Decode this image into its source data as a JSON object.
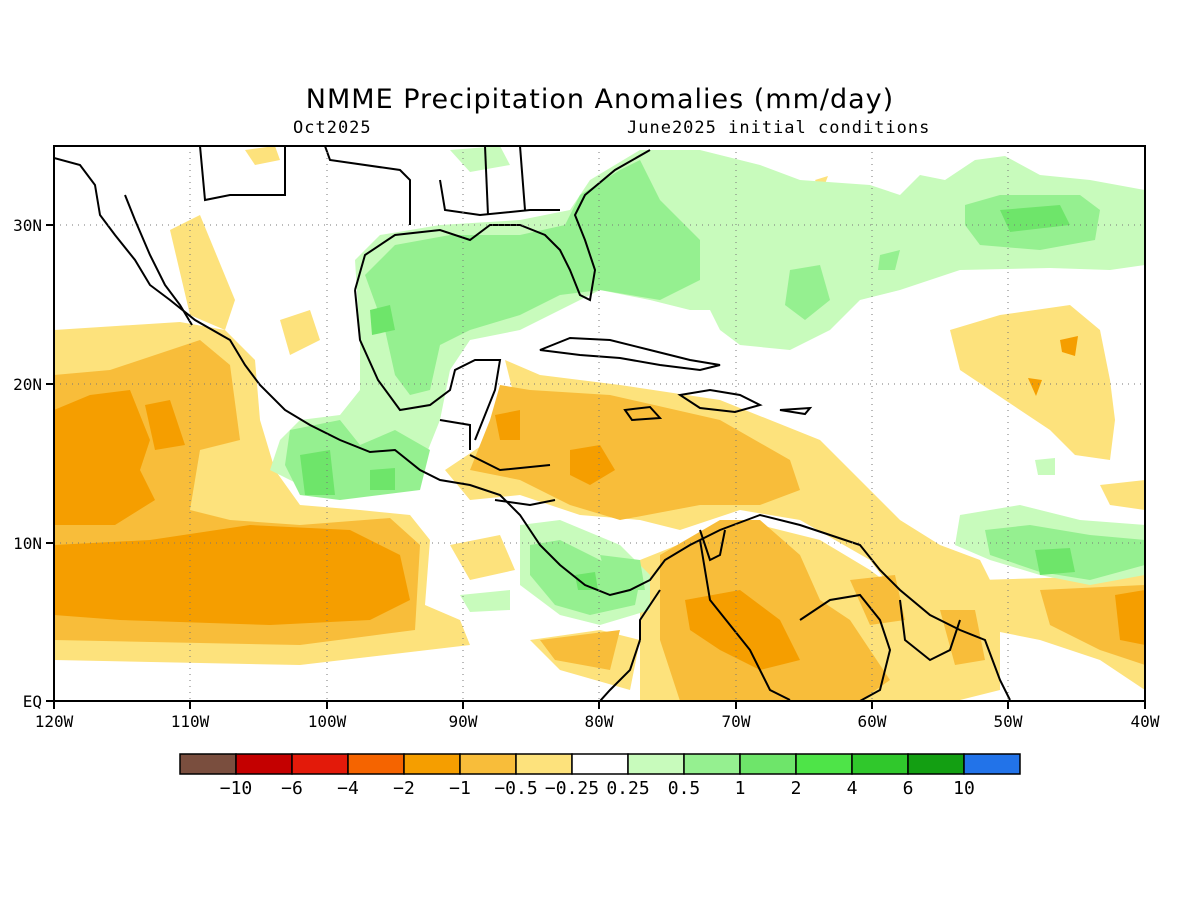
{
  "title": "NMME Precipitation Anomalies (mm/day)",
  "valid_month": "Oct2025",
  "initial_conditions": "June2025 initial conditions",
  "map": {
    "projection": "lat-lon",
    "lon_range": [
      -120,
      -40
    ],
    "lat_range": [
      0,
      35
    ],
    "grid": "dotted",
    "x_ticks": [
      "120W",
      "110W",
      "100W",
      "90W",
      "80W",
      "70W",
      "60W",
      "50W",
      "40W"
    ],
    "y_ticks": [
      "EQ",
      "10N",
      "20N",
      "30N"
    ]
  },
  "colorbar": {
    "colors": [
      "#7a4e3e",
      "#c40000",
      "#e31a0a",
      "#f56400",
      "#f59e00",
      "#f8bd3a",
      "#fde27c",
      "#ffffff",
      "#c8fbbc",
      "#95f090",
      "#6ee56a",
      "#4ee448",
      "#30c82c",
      "#139f12",
      "#2273e9"
    ],
    "labels": [
      "-10",
      "-6",
      "-4",
      "-2",
      "-1",
      "-0.5",
      "-0.25",
      "0.25",
      "0.5",
      "1",
      "2",
      "4",
      "6",
      "10"
    ]
  }
}
